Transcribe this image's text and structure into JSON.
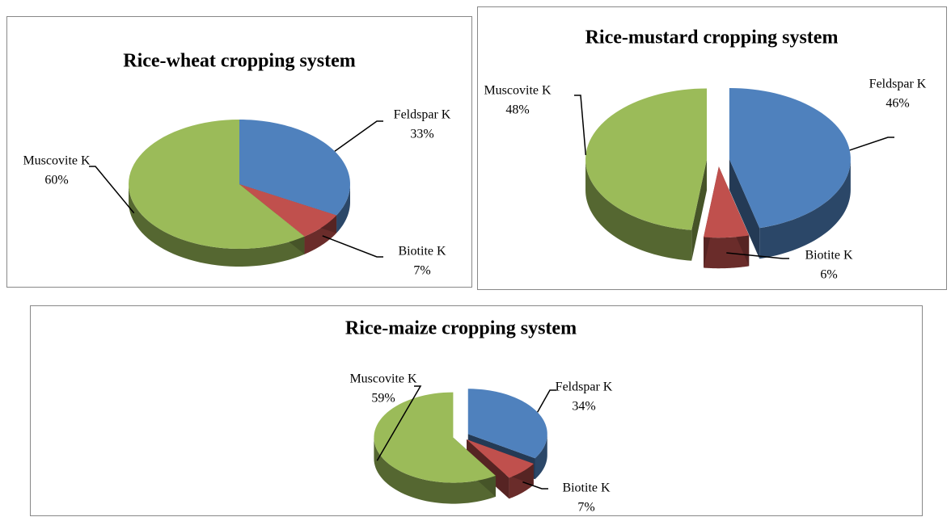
{
  "chart_data": [
    {
      "type": "pie",
      "title": "Rice-wheat cropping system",
      "categories": [
        "Feldspar K",
        "Biotite K",
        "Muscovite K"
      ],
      "values": [
        33,
        7,
        60
      ],
      "value_labels": [
        "33%",
        "7%",
        "60%"
      ],
      "colors": [
        "#4f81bd",
        "#c0504d",
        "#9bbb59"
      ],
      "exploded": false
    },
    {
      "type": "pie",
      "title": "Rice-mustard cropping system",
      "categories": [
        "Feldspar K",
        "Biotite K",
        "Muscovite K"
      ],
      "values": [
        46,
        6,
        48
      ],
      "value_labels": [
        "46%",
        "6%",
        "48%"
      ],
      "colors": [
        "#4f81bd",
        "#c0504d",
        "#9bbb59"
      ],
      "exploded": true
    },
    {
      "type": "pie",
      "title": "Rice-maize cropping system",
      "categories": [
        "Feldspar K",
        "Biotite K",
        "Muscovite K"
      ],
      "values": [
        34,
        7,
        59
      ],
      "value_labels": [
        "34%",
        "7%",
        "59%"
      ],
      "colors": [
        "#4f81bd",
        "#c0504d",
        "#9bbb59"
      ],
      "exploded": true
    }
  ]
}
